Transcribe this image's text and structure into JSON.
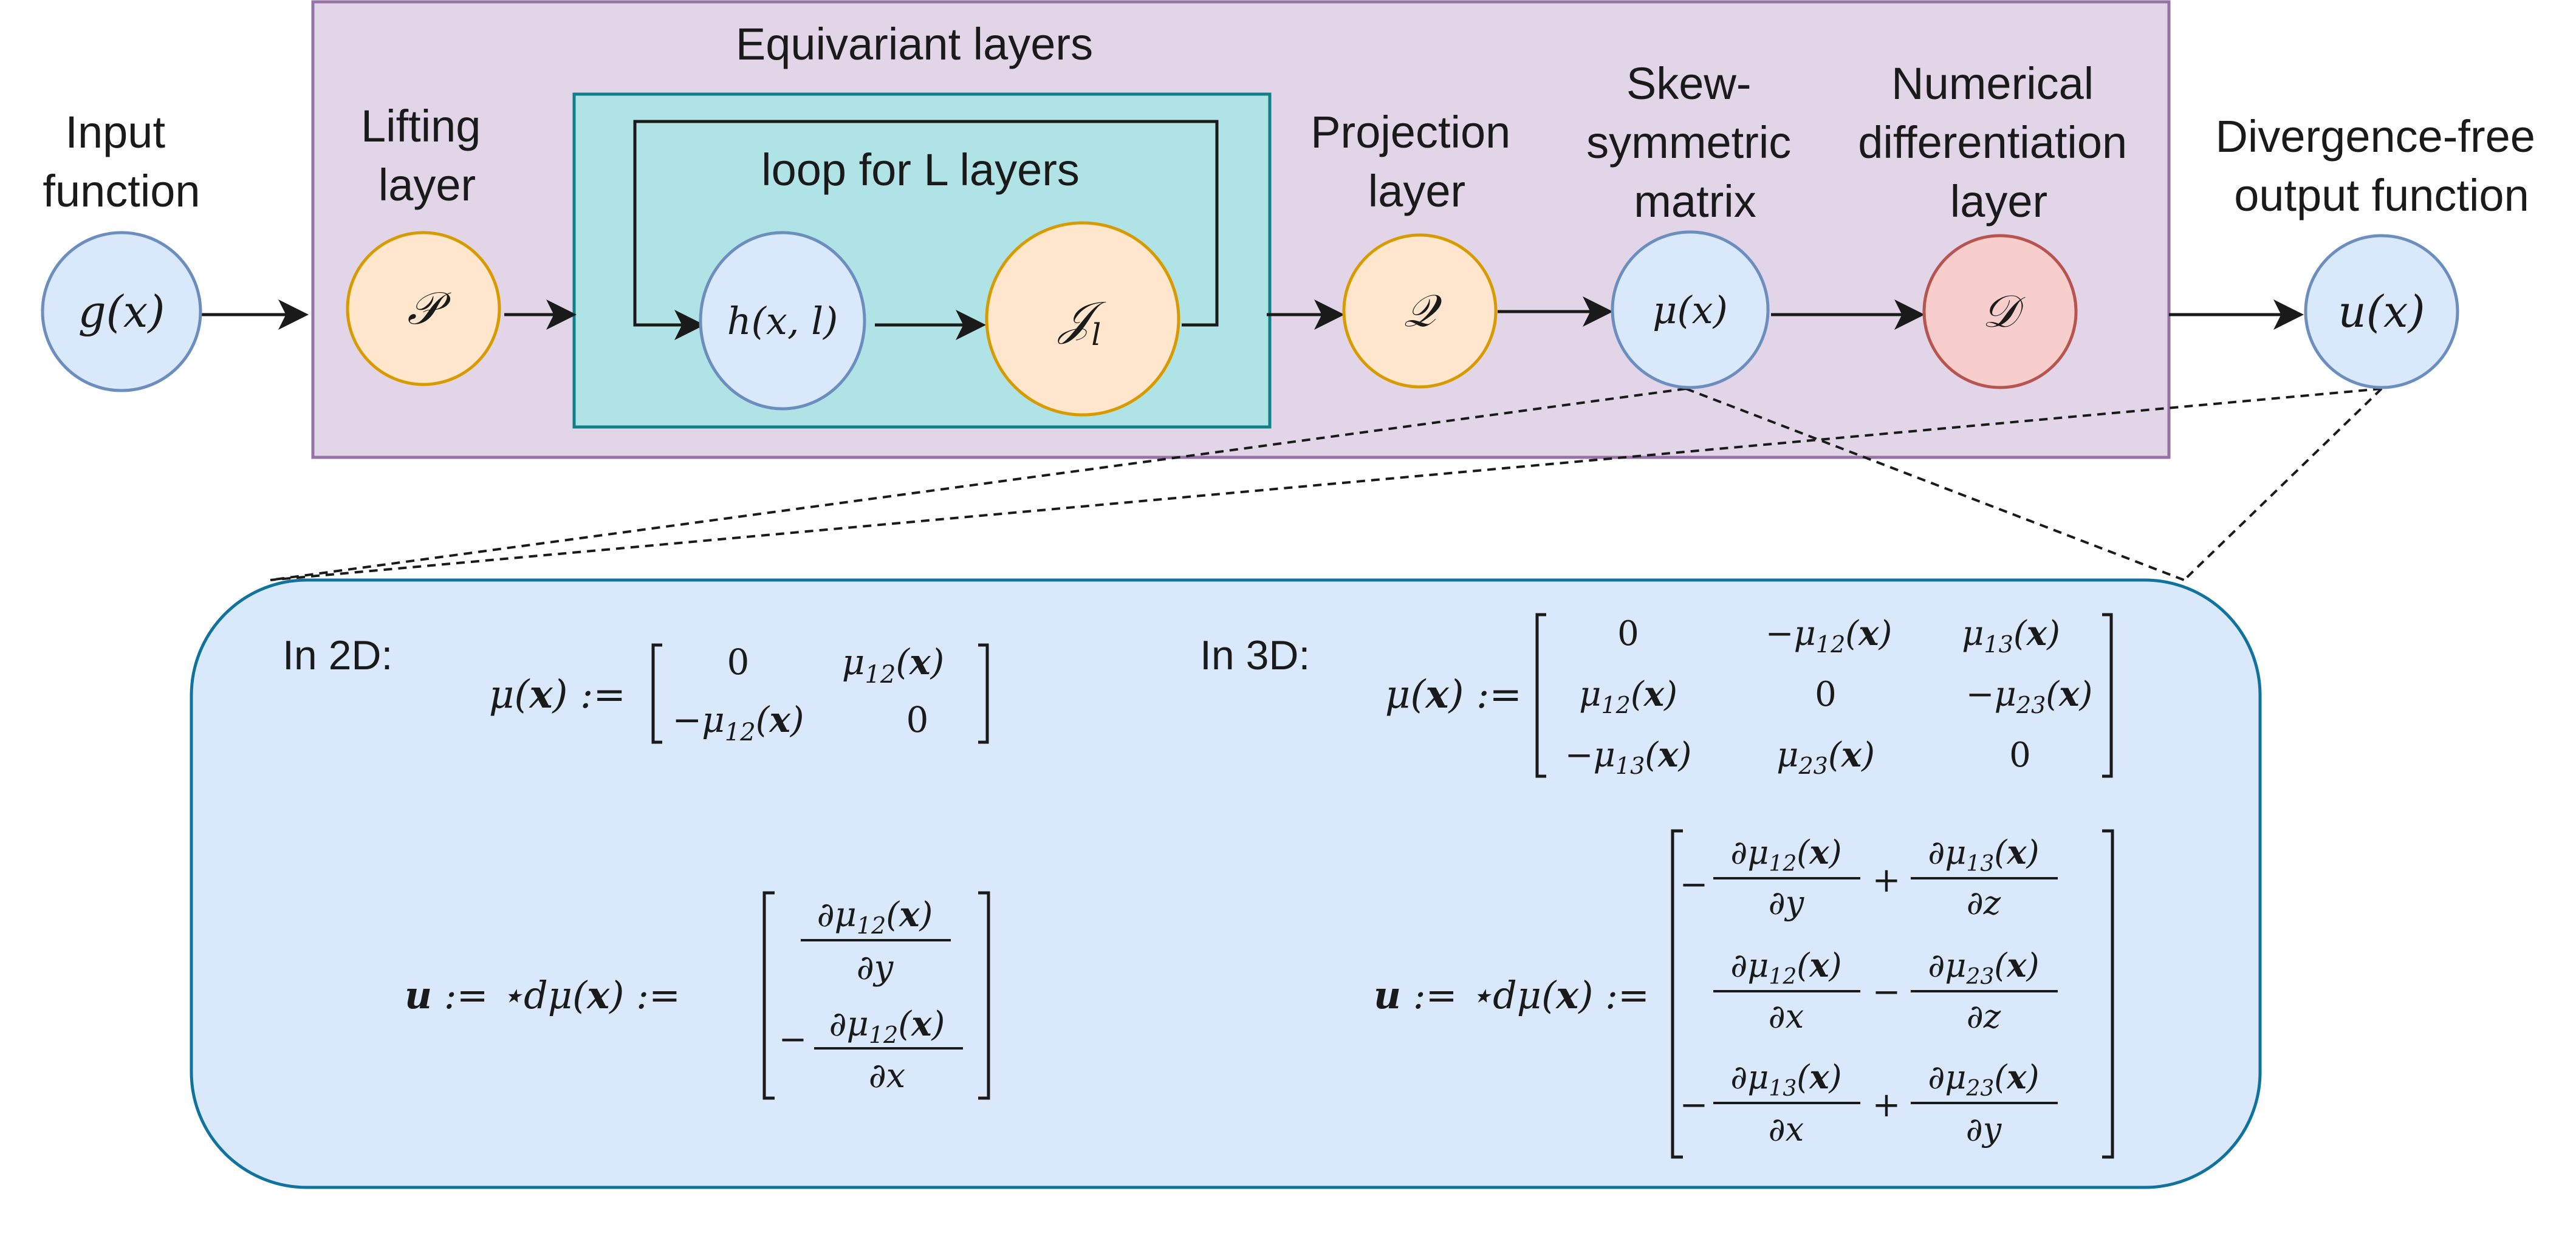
{
  "diagram": {
    "labels": {
      "equivariant_layers": "Equivariant layers",
      "loop": "loop for L layers",
      "input_l1": "Input",
      "input_l2": "function",
      "lifting_l1": "Lifting",
      "lifting_l2": "layer",
      "projection_l1": "Projection",
      "projection_l2": "layer",
      "skew_l1": "Skew-",
      "skew_l2": "symmetric",
      "skew_l3": "matrix",
      "numdiff_l1": "Numerical",
      "numdiff_l2": "differentiation",
      "numdiff_l3": "layer",
      "output_l1": "Divergence-free",
      "output_l2": "output function"
    },
    "nodes": {
      "input": "g(x)",
      "lifting": "𝒫",
      "hidden": "h(x, l)",
      "kernel": "𝒥",
      "kernel_sub": "l",
      "projection": "𝒬",
      "mu": "μ(x)",
      "diff": "𝒟",
      "output": "u(x)"
    },
    "colors": {
      "blue_fill": "#dae8fc",
      "blue_stroke": "#6c8ebf",
      "orange_fill": "#ffe6cc",
      "orange_stroke": "#d79b00",
      "red_fill": "#f8cecc",
      "red_stroke": "#b85450",
      "purple_fill": "#e1d5e7",
      "purple_stroke": "#9673a6",
      "teal_fill": "#b0e3e6",
      "teal_stroke": "#0e8088",
      "detail_fill": "#dae8fc",
      "detail_stroke": "#10739e"
    }
  },
  "detail": {
    "in2d": "In 2D:",
    "in3d": "In 3D:",
    "mu_lhs": "μ(x) :=",
    "u_lhs": "u := ⋆dμ(x) :=",
    "mu2d": [
      "0",
      "μ12(x)",
      "−μ12(x)",
      "0"
    ],
    "mu3d": [
      "0",
      "−μ12(x)",
      "μ13(x)",
      "μ12(x)",
      "0",
      "−μ23(x)",
      "−μ13(x)",
      "μ23(x)",
      "0"
    ],
    "u2d": [
      "∂μ12(x) / ∂y",
      "−∂μ12(x) / ∂x"
    ],
    "u3d": [
      "−∂μ12(x)/∂y + ∂μ13(x)/∂z",
      "∂μ12(x)/∂x − ∂μ23(x)/∂z",
      "−∂μ13(x)/∂x + ∂μ23(x)/∂y"
    ]
  }
}
